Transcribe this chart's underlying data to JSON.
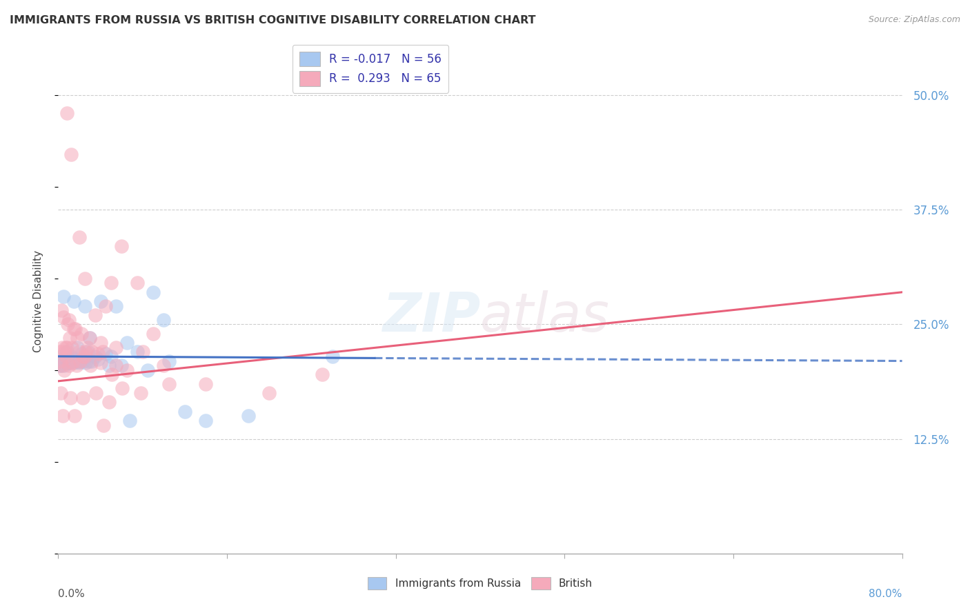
{
  "title": "IMMIGRANTS FROM RUSSIA VS BRITISH COGNITIVE DISABILITY CORRELATION CHART",
  "source": "Source: ZipAtlas.com",
  "ylabel": "Cognitive Disability",
  "legend_r_blue": "-0.017",
  "legend_n_blue": "56",
  "legend_r_pink": "0.293",
  "legend_n_pink": "65",
  "legend_label_blue": "Immigrants from Russia",
  "legend_label_pink": "British",
  "blue_color": "#A8C8F0",
  "pink_color": "#F5AABB",
  "blue_line_color": "#4472C4",
  "pink_line_color": "#E8607A",
  "background_color": "#FFFFFF",
  "grid_color": "#C8C8C8",
  "ytick_color": "#5B9BD5",
  "xlim": [
    0,
    80
  ],
  "ylim": [
    0,
    55
  ],
  "yticks": [
    12.5,
    25.0,
    37.5,
    50.0
  ],
  "xtick_positions": [
    0,
    16,
    32,
    48,
    64,
    80
  ],
  "blue_x": [
    0.5,
    1.5,
    2.5,
    3.0,
    4.0,
    5.5,
    6.5,
    7.5,
    9.0,
    10.0,
    0.3,
    0.8,
    1.2,
    1.8,
    2.2,
    2.8,
    3.5,
    4.5,
    5.0,
    6.0,
    0.2,
    0.4,
    0.6,
    0.7,
    0.9,
    1.0,
    1.1,
    1.3,
    1.4,
    1.6,
    1.7,
    1.9,
    2.0,
    2.1,
    2.3,
    2.4,
    2.6,
    2.9,
    3.2,
    3.8,
    0.15,
    0.35,
    0.55,
    0.75,
    0.95,
    1.05,
    1.25,
    1.45,
    4.8,
    6.8,
    8.5,
    10.5,
    12.0,
    14.0,
    18.0,
    26.0
  ],
  "blue_y": [
    28.0,
    27.5,
    27.0,
    23.5,
    27.5,
    27.0,
    23.0,
    22.0,
    28.5,
    25.5,
    21.5,
    22.0,
    21.5,
    22.5,
    21.8,
    22.0,
    21.5,
    21.8,
    21.5,
    20.5,
    20.5,
    21.0,
    20.8,
    21.5,
    21.0,
    20.8,
    21.2,
    21.0,
    21.3,
    21.0,
    21.2,
    21.0,
    20.8,
    21.0,
    21.2,
    21.0,
    20.8,
    21.0,
    21.0,
    21.2,
    20.5,
    20.8,
    20.5,
    21.0,
    20.8,
    20.8,
    21.0,
    20.8,
    20.5,
    14.5,
    20.0,
    21.0,
    15.5,
    14.5,
    15.0,
    21.5
  ],
  "pink_x": [
    0.8,
    1.2,
    2.0,
    2.5,
    3.5,
    4.5,
    5.0,
    6.0,
    7.5,
    8.0,
    9.0,
    10.0,
    0.3,
    0.5,
    0.7,
    0.9,
    1.0,
    1.5,
    2.2,
    3.0,
    4.0,
    5.5,
    0.2,
    0.4,
    0.6,
    0.8,
    1.1,
    1.3,
    1.6,
    1.8,
    2.0,
    2.3,
    2.6,
    2.8,
    3.2,
    3.8,
    4.2,
    0.15,
    0.35,
    0.55,
    0.75,
    1.05,
    1.35,
    1.75,
    2.05,
    2.55,
    3.05,
    4.05,
    5.05,
    6.05,
    0.25,
    0.45,
    1.15,
    1.55,
    2.35,
    3.6,
    4.8,
    5.5,
    6.5,
    7.8,
    10.5,
    14.0,
    25.0,
    4.3,
    20.0
  ],
  "pink_y": [
    48.0,
    43.5,
    34.5,
    30.0,
    26.0,
    27.0,
    29.5,
    33.5,
    29.5,
    22.0,
    24.0,
    20.5,
    26.5,
    25.8,
    22.5,
    25.0,
    25.5,
    24.5,
    24.0,
    23.5,
    23.0,
    22.5,
    22.0,
    22.5,
    22.0,
    22.5,
    23.5,
    22.5,
    24.5,
    23.5,
    22.0,
    21.5,
    22.0,
    22.5,
    22.0,
    21.8,
    22.0,
    21.0,
    20.5,
    20.0,
    21.5,
    20.5,
    20.8,
    20.5,
    21.0,
    21.5,
    20.5,
    20.8,
    19.5,
    18.0,
    17.5,
    15.0,
    17.0,
    15.0,
    17.0,
    17.5,
    16.5,
    20.5,
    20.0,
    17.5,
    18.5,
    18.5,
    19.5,
    14.0,
    17.5
  ]
}
